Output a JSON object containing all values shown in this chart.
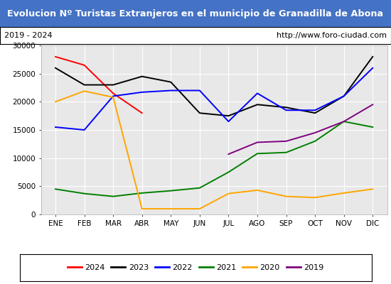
{
  "title": "Evolucion Nº Turistas Extranjeros en el municipio de Granadilla de Abona",
  "title_color": "white",
  "title_bg_color": "#4472c4",
  "subtitle_left": "2019 - 2024",
  "subtitle_right": "http://www.foro-ciudad.com",
  "subtitle_bg_color": "white",
  "subtitle_border_color": "black",
  "x_labels": [
    "ENE",
    "FEB",
    "MAR",
    "ABR",
    "MAY",
    "JUN",
    "JUL",
    "AGO",
    "SEP",
    "OCT",
    "NOV",
    "DIC"
  ],
  "ylim": [
    0,
    30000
  ],
  "yticks": [
    0,
    5000,
    10000,
    15000,
    20000,
    25000,
    30000
  ],
  "plot_bg_color": "#e8e8e8",
  "grid_color": "white",
  "series": {
    "2024": {
      "color": "red",
      "data": [
        28000,
        26500,
        21500,
        18000,
        null,
        null,
        null,
        null,
        null,
        null,
        null,
        null
      ]
    },
    "2023": {
      "color": "black",
      "data": [
        26000,
        23000,
        23000,
        24500,
        23500,
        18000,
        17500,
        19500,
        19000,
        18000,
        21000,
        28000
      ]
    },
    "2022": {
      "color": "blue",
      "data": [
        15500,
        15000,
        21000,
        21700,
        22000,
        22000,
        16500,
        21500,
        18500,
        18500,
        21000,
        26000
      ]
    },
    "2021": {
      "color": "green",
      "data": [
        4500,
        3700,
        3200,
        3800,
        4200,
        4700,
        7500,
        10800,
        11000,
        13000,
        16500,
        15500
      ]
    },
    "2020": {
      "color": "orange",
      "data": [
        20000,
        21900,
        20800,
        1000,
        1000,
        1000,
        3700,
        4300,
        3200,
        3000,
        3800,
        4500
      ]
    },
    "2019": {
      "color": "purple",
      "data": [
        null,
        null,
        null,
        null,
        null,
        null,
        10700,
        12800,
        13000,
        14500,
        16500,
        19500
      ]
    }
  },
  "legend_order": [
    "2024",
    "2023",
    "2022",
    "2021",
    "2020",
    "2019"
  ]
}
